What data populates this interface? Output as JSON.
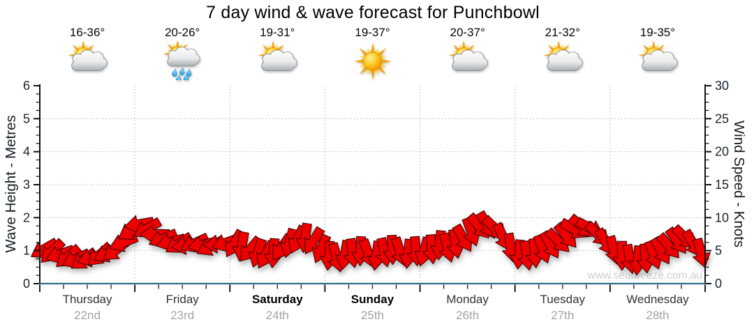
{
  "title": "7 day wind & wave forecast for Punchbowl",
  "watermark": "www.seabreeze.com.au",
  "colors": {
    "arrow_fill": "#ec0000",
    "arrow_stroke": "#350000",
    "baseline_blue": "#2f6b8f",
    "grid": "#b5b5b5",
    "axis_line": "#111111",
    "tick_label": "#1a2330",
    "day_name": "#333333",
    "day_date": "#a3a3a3",
    "watermark": "#cbd0d4"
  },
  "left_axis": {
    "label": "Wave Height - Metres",
    "min": 0,
    "max": 6,
    "tick_labels": [
      "0",
      "1",
      "2",
      "3",
      "4",
      "5",
      "6"
    ]
  },
  "right_axis": {
    "label": "Wind Speed - Knots",
    "min": 0,
    "max": 30,
    "tick_labels": [
      "0",
      "5",
      "10",
      "15",
      "20",
      "25",
      "30"
    ]
  },
  "days": [
    {
      "name": "Thursday",
      "date": "22nd",
      "temp": "16-36°",
      "icon": "sun-behind-cloud",
      "weekend": false
    },
    {
      "name": "Friday",
      "date": "23rd",
      "temp": "20-26°",
      "icon": "rain-shower",
      "weekend": false
    },
    {
      "name": "Saturday",
      "date": "24th",
      "temp": "19-31°",
      "icon": "sun-behind-cloud",
      "weekend": true
    },
    {
      "name": "Sunday",
      "date": "25th",
      "temp": "19-37°",
      "icon": "sunny",
      "weekend": true
    },
    {
      "name": "Monday",
      "date": "26th",
      "temp": "20-37°",
      "icon": "sun-behind-cloud",
      "weekend": false
    },
    {
      "name": "Tuesday",
      "date": "27th",
      "temp": "21-32°",
      "icon": "sun-behind-cloud",
      "weekend": false
    },
    {
      "name": "Wednesday",
      "date": "28th",
      "temp": "19-35°",
      "icon": "sun-behind-cloud",
      "weekend": false
    }
  ],
  "chart_data": {
    "type": "wind-arrow-series",
    "title": "7 day wind & wave forecast for Punchbowl",
    "wave_axis_range": [
      0,
      6
    ],
    "wind_axis_range": [
      0,
      30
    ],
    "grid": "dotted, at whole metres and day boundaries",
    "points_per_day": 12,
    "dir_deg_convention": "arrow rotation, degrees clockwise from pointing right",
    "series": [
      {
        "day": "Thursday 22nd",
        "knots": [
          5.2,
          4.8,
          4.4,
          4.0,
          3.7,
          3.6,
          3.9,
          4.3,
          4.6,
          5.0,
          6.2,
          8.0
        ],
        "dir_deg": [
          150,
          135,
          160,
          140,
          155,
          145,
          165,
          138,
          152,
          142,
          158,
          148
        ]
      },
      {
        "day": "Friday 23rd",
        "knots": [
          9.0,
          8.3,
          7.5,
          6.8,
          6.3,
          6.0,
          5.8,
          6.1,
          5.9,
          5.6,
          6.0,
          6.2
        ],
        "dir_deg": [
          170,
          150,
          180,
          158,
          165,
          148,
          172,
          155,
          168,
          152,
          175,
          160
        ]
      },
      {
        "day": "Saturday 24th",
        "knots": [
          6.0,
          5.6,
          5.1,
          4.6,
          4.3,
          4.6,
          5.4,
          6.1,
          6.6,
          6.9,
          6.4,
          5.2
        ],
        "dir_deg": [
          120,
          100,
          130,
          108,
          118,
          95,
          125,
          105,
          115,
          98,
          122,
          112
        ]
      },
      {
        "day": "Sunday 25th",
        "knots": [
          4.2,
          3.9,
          4.3,
          4.6,
          4.9,
          4.5,
          4.2,
          4.7,
          5.1,
          4.8,
          4.5,
          4.9
        ],
        "dir_deg": [
          95,
          75,
          100,
          82,
          92,
          70,
          98,
          78,
          88,
          72,
          96,
          85
        ]
      },
      {
        "day": "Monday 26th",
        "knots": [
          4.8,
          5.2,
          5.8,
          5.4,
          6.0,
          6.8,
          7.8,
          8.6,
          8.8,
          8.3,
          7.0,
          5.4
        ],
        "dir_deg": [
          105,
          85,
          95,
          75,
          80,
          60,
          70,
          50,
          60,
          45,
          65,
          80
        ]
      },
      {
        "day": "Tuesday 27th",
        "knots": [
          4.4,
          4.2,
          4.6,
          5.2,
          5.8,
          6.4,
          7.2,
          8.2,
          8.6,
          8.4,
          7.4,
          6.2
        ],
        "dir_deg": [
          95,
          80,
          85,
          70,
          60,
          45,
          50,
          30,
          40,
          28,
          45,
          60
        ]
      },
      {
        "day": "Wednesday 28th",
        "knots": [
          5.0,
          4.2,
          3.7,
          3.5,
          3.8,
          4.3,
          4.9,
          5.6,
          6.4,
          6.9,
          6.0,
          4.6
        ],
        "dir_deg": [
          75,
          90,
          80,
          95,
          85,
          70,
          60,
          50,
          55,
          45,
          60,
          75
        ]
      }
    ]
  }
}
